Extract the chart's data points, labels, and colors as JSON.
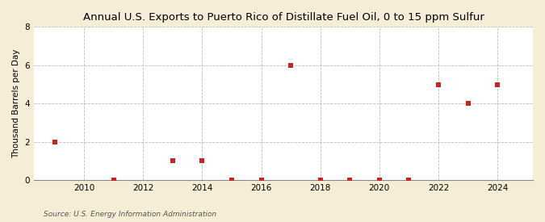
{
  "title": "Annual U.S. Exports to Puerto Rico of Distillate Fuel Oil, 0 to 15 ppm Sulfur",
  "ylabel": "Thousand Barrels per Day",
  "source": "Source: U.S. Energy Information Administration",
  "background_color": "#f5edd6",
  "plot_background_color": "#ffffff",
  "marker_color": "#cc2222",
  "marker_size": 18,
  "years": [
    2009,
    2011,
    2013,
    2014,
    2015,
    2016,
    2017,
    2018,
    2019,
    2020,
    2021,
    2022,
    2023,
    2024
  ],
  "values": [
    2.0,
    0.0,
    1.0,
    1.0,
    0.0,
    0.0,
    6.0,
    0.0,
    0.0,
    0.0,
    0.0,
    5.0,
    4.0,
    5.0
  ],
  "xlim": [
    2008.3,
    2025.2
  ],
  "ylim": [
    0,
    8
  ],
  "yticks": [
    0,
    2,
    4,
    6,
    8
  ],
  "xticks": [
    2010,
    2012,
    2014,
    2016,
    2018,
    2020,
    2022,
    2024
  ],
  "title_fontsize": 9.5,
  "label_fontsize": 7.5,
  "tick_fontsize": 7.5,
  "source_fontsize": 6.5
}
